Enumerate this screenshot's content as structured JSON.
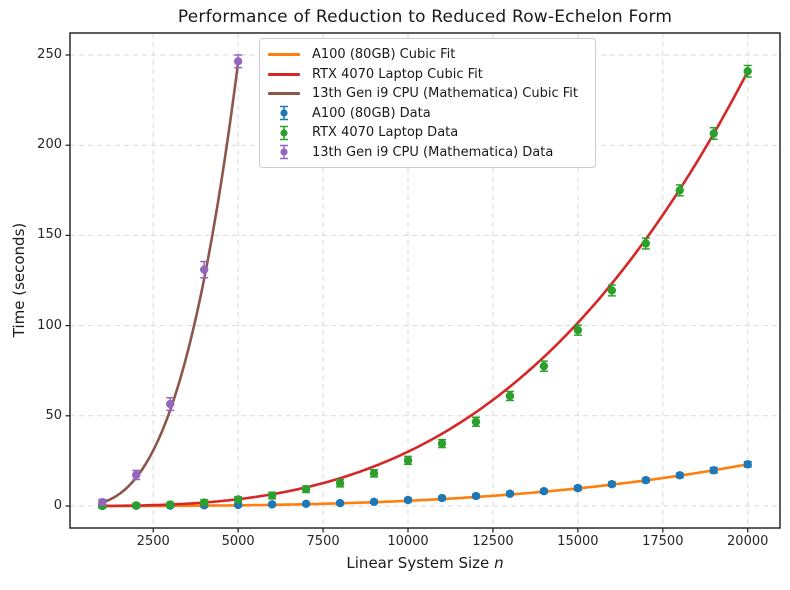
{
  "chart_data": {
    "type": "line",
    "title": "Performance of Reduction to Reduced Row-Echelon Form",
    "xlabel": "Linear System Size n",
    "xlabel_plain": "Linear System Size",
    "xlabel_var": "n",
    "ylabel": "Time (seconds)",
    "xlim": [
      50,
      20950
    ],
    "ylim": [
      -12.2,
      262.2
    ],
    "xticks": [
      2500,
      5000,
      7500,
      10000,
      12500,
      15000,
      17500,
      20000
    ],
    "yticks": [
      0,
      50,
      100,
      150,
      200,
      250
    ],
    "grid": true,
    "grid_style": "dashed",
    "legend_position": "upper center",
    "colors": {
      "a100": "#1f77b4",
      "a100_fit": "#ff7f0e",
      "rtx": "#2ca02c",
      "rtx_fit": "#d62728",
      "cpu": "#9467bd",
      "cpu_fit": "#8c564b",
      "grid": "#d9d9d9",
      "spine": "#1a1a1a"
    },
    "series": [
      {
        "name": "A100 (80GB) Cubic Fit",
        "kind": "fit-line",
        "color": "#ff7f0e",
        "cubic_coeff_n3": 2.89e-12,
        "range": [
          1000,
          20000
        ]
      },
      {
        "name": "RTX 4070 Laptop Cubic Fit",
        "kind": "fit-line",
        "color": "#d62728",
        "cubic_coeff_n3": 3.01e-11,
        "range": [
          1000,
          20000
        ]
      },
      {
        "name": "13th Gen i9 CPU (Mathematica) Cubic Fit",
        "kind": "fit-line",
        "color": "#8c564b",
        "cubic_coeff_n3": 1.97e-09,
        "range": [
          1000,
          5000
        ]
      },
      {
        "name": "A100 (80GB) Data",
        "kind": "errorbar",
        "color": "#1f77b4",
        "x": [
          1000,
          2000,
          3000,
          4000,
          5000,
          6000,
          7000,
          8000,
          9000,
          10000,
          11000,
          12000,
          13000,
          14000,
          15000,
          16000,
          17000,
          18000,
          19000,
          20000
        ],
        "y": [
          0.0,
          0.1,
          0.2,
          0.4,
          0.6,
          0.9,
          1.2,
          1.6,
          2.3,
          3.3,
          4.4,
          5.5,
          6.8,
          8.2,
          9.9,
          12.1,
          14.3,
          17.0,
          19.8,
          23.1
        ],
        "yerr": [
          0.8,
          0.8,
          0.8,
          0.8,
          0.8,
          0.8,
          0.8,
          0.8,
          0.8,
          1.0,
          1.0,
          1.0,
          1.0,
          1.0,
          1.2,
          1.2,
          1.2,
          1.2,
          1.5,
          1.5
        ]
      },
      {
        "name": "RTX 4070 Laptop Data",
        "kind": "errorbar",
        "color": "#2ca02c",
        "x": [
          1000,
          2000,
          3000,
          4000,
          5000,
          6000,
          7000,
          8000,
          9000,
          10000,
          11000,
          12000,
          13000,
          14000,
          15000,
          16000,
          17000,
          18000,
          19000,
          20000
        ],
        "y": [
          0.1,
          0.3,
          0.8,
          1.9,
          3.6,
          5.8,
          9.3,
          12.6,
          18.1,
          25.3,
          34.6,
          46.7,
          61.0,
          77.5,
          97.5,
          119.5,
          145.5,
          175.0,
          206.5,
          241.0
        ],
        "yerr": [
          1.2,
          1.2,
          1.2,
          1.5,
          1.5,
          1.8,
          1.8,
          2.0,
          2.0,
          2.2,
          2.2,
          2.5,
          2.5,
          2.8,
          2.8,
          3.0,
          3.0,
          3.0,
          3.2,
          3.2
        ]
      },
      {
        "name": "13th Gen i9 CPU (Mathematica) Data",
        "kind": "errorbar",
        "color": "#9467bd",
        "x": [
          1000,
          2000,
          3000,
          4000,
          5000
        ],
        "y": [
          2.1,
          17.2,
          56.5,
          131.0,
          246.5
        ],
        "yerr": [
          1.5,
          2.5,
          3.5,
          4.5,
          3.5
        ]
      }
    ]
  }
}
